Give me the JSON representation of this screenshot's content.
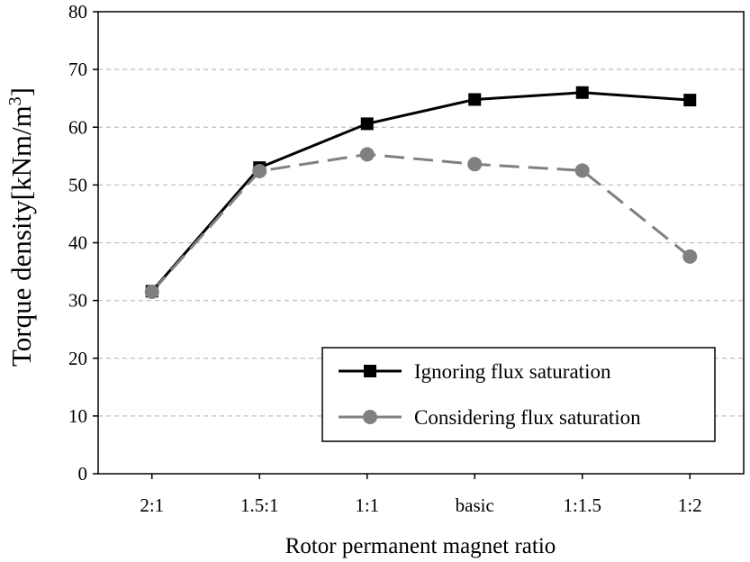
{
  "chart_data": {
    "type": "line",
    "categories": [
      "2:1",
      "1.5:1",
      "1:1",
      "basic",
      "1:1.5",
      "1:2"
    ],
    "series": [
      {
        "name": "Ignoring flux saturation",
        "values": [
          31.6,
          53.0,
          60.6,
          64.8,
          66.0,
          64.7
        ],
        "color": "#000000",
        "dash": "solid",
        "marker": "square"
      },
      {
        "name": "Considering flux saturation",
        "values": [
          31.5,
          52.4,
          55.3,
          53.6,
          52.5,
          37.6
        ],
        "color": "#808080",
        "dash": "dashed",
        "marker": "circle"
      }
    ],
    "xlabel": "Rotor permanent magnet ratio",
    "ylabel": "Torque density[kNm/m",
    "ylabel_superscript": "3",
    "ylabel_suffix": "]",
    "ylim": [
      0,
      80
    ],
    "yticks": [
      0,
      10,
      20,
      30,
      40,
      50,
      60,
      70,
      80
    ],
    "grid": "horizontal dashed",
    "legend_position": "bottom-right"
  }
}
